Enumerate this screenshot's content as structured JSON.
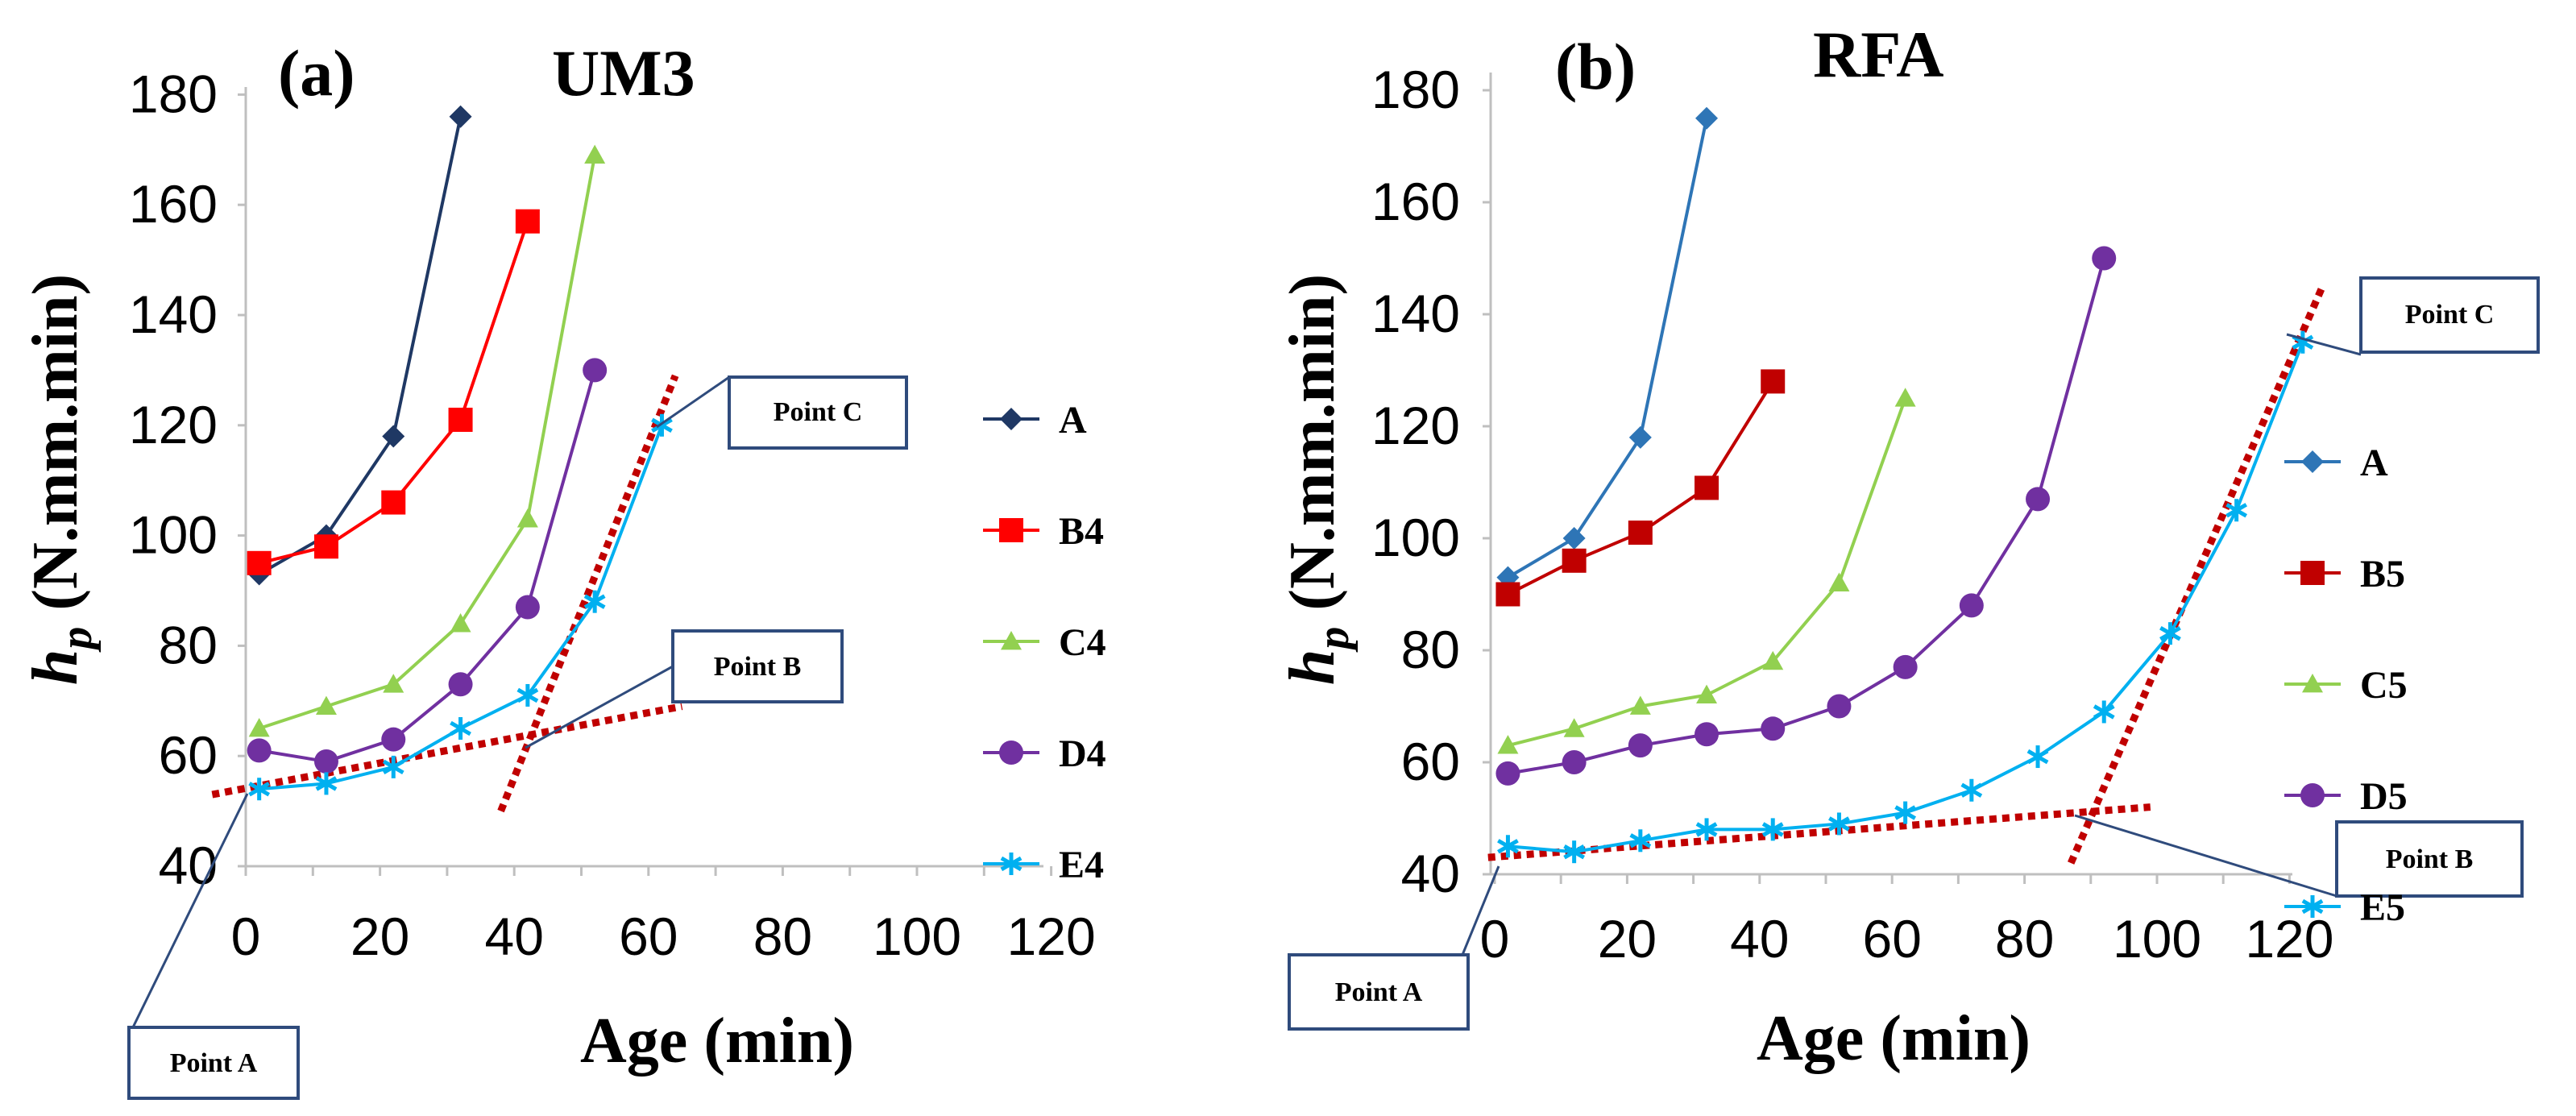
{
  "chart_data": [
    {
      "type": "line",
      "panel_label": "(a)",
      "title": "UM3",
      "xlabel": "Age (min)",
      "ylabel_main": "h",
      "ylabel_sub": "p",
      "ylabel_unit": " (N.mm.min)",
      "xlim": [
        0,
        120
      ],
      "ylim": [
        40,
        180
      ],
      "xticks": [
        0,
        20,
        40,
        60,
        80,
        100,
        120
      ],
      "yticks": [
        40,
        60,
        80,
        100,
        120,
        140,
        160,
        180
      ],
      "legend_position": "right",
      "series": [
        {
          "name": "A",
          "color": "#1f3864",
          "marker": "diamond",
          "x": [
            2,
            12,
            22,
            32
          ],
          "y": [
            93,
            100,
            118,
            176
          ]
        },
        {
          "name": "B4",
          "color": "#ff0000",
          "marker": "square",
          "x": [
            2,
            12,
            22,
            32,
            42
          ],
          "y": [
            95,
            98,
            106,
            121,
            157
          ]
        },
        {
          "name": "C4",
          "color": "#92d050",
          "marker": "triangle",
          "x": [
            2,
            12,
            22,
            32,
            42,
            52
          ],
          "y": [
            65,
            69,
            73,
            84,
            103,
            169
          ]
        },
        {
          "name": "D4",
          "color": "#7030a0",
          "marker": "circle",
          "x": [
            2,
            12,
            22,
            32,
            42,
            52
          ],
          "y": [
            61,
            59,
            63,
            73,
            87,
            130
          ]
        },
        {
          "name": "E4",
          "color": "#00b0f0",
          "marker": "star",
          "x": [
            2,
            12,
            22,
            32,
            42,
            52,
            62
          ],
          "y": [
            54,
            55,
            58,
            65,
            71,
            88,
            120
          ]
        }
      ],
      "trend_lines": [
        {
          "from": [
            -5,
            53
          ],
          "to": [
            65,
            69
          ]
        },
        {
          "from": [
            38,
            50
          ],
          "to": [
            64,
            129
          ]
        }
      ],
      "annotations": [
        {
          "text": "Point A",
          "at": [
            0,
            53
          ]
        },
        {
          "text": "Point B",
          "at": [
            42,
            63
          ]
        },
        {
          "text": "Point C",
          "at": [
            60,
            118
          ]
        }
      ]
    },
    {
      "type": "line",
      "panel_label": "(b)",
      "title": "RFA",
      "xlabel": "Age (min)",
      "ylabel_main": "h",
      "ylabel_sub": "p",
      "ylabel_unit": " (N.mm.min)",
      "xlim": [
        0,
        120
      ],
      "ylim": [
        40,
        180
      ],
      "xticks": [
        0,
        20,
        40,
        60,
        80,
        100,
        120
      ],
      "yticks": [
        40,
        60,
        80,
        100,
        120,
        140,
        160,
        180
      ],
      "legend_position": "right",
      "series": [
        {
          "name": "A",
          "color": "#2e75b6",
          "marker": "diamond",
          "x": [
            2,
            12,
            22,
            32
          ],
          "y": [
            93,
            100,
            118,
            175
          ]
        },
        {
          "name": "B5",
          "color": "#c00000",
          "marker": "square",
          "x": [
            2,
            12,
            22,
            32,
            42
          ],
          "y": [
            90,
            96,
            101,
            109,
            128
          ]
        },
        {
          "name": "C5",
          "color": "#92d050",
          "marker": "triangle",
          "x": [
            2,
            12,
            22,
            32,
            42,
            52,
            62
          ],
          "y": [
            63,
            66,
            70,
            72,
            78,
            92,
            125
          ]
        },
        {
          "name": "D5",
          "color": "#7030a0",
          "marker": "circle",
          "x": [
            2,
            12,
            22,
            32,
            42,
            52,
            62,
            72,
            82,
            92
          ],
          "y": [
            58,
            60,
            63,
            65,
            66,
            70,
            77,
            88,
            107,
            150
          ]
        },
        {
          "name": "E5",
          "color": "#00b0f0",
          "marker": "star",
          "x": [
            2,
            12,
            22,
            32,
            42,
            52,
            62,
            72,
            82,
            92,
            102,
            112,
            122
          ],
          "y": [
            45,
            44,
            46,
            48,
            48,
            49,
            51,
            55,
            61,
            69,
            83,
            105,
            135
          ]
        }
      ],
      "trend_lines": [
        {
          "from": [
            -1,
            43
          ],
          "to": [
            99,
            52
          ]
        },
        {
          "from": [
            87,
            42
          ],
          "to": [
            125,
            145
          ]
        }
      ],
      "annotations": [
        {
          "text": "Point A",
          "at": [
            0,
            43
          ]
        },
        {
          "text": "Point B",
          "at": [
            89,
            51
          ]
        },
        {
          "text": "Point C",
          "at": [
            122,
            135
          ]
        }
      ]
    }
  ]
}
